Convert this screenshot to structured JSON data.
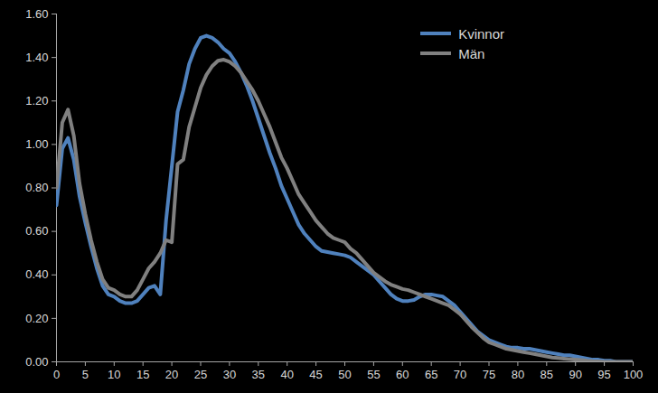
{
  "chart_data": {
    "type": "line",
    "x": [
      0,
      1,
      2,
      3,
      4,
      5,
      6,
      7,
      8,
      9,
      10,
      11,
      12,
      13,
      14,
      15,
      16,
      17,
      18,
      19,
      20,
      21,
      22,
      23,
      24,
      25,
      26,
      27,
      28,
      29,
      30,
      31,
      32,
      33,
      34,
      35,
      36,
      37,
      38,
      39,
      40,
      41,
      42,
      43,
      44,
      45,
      46,
      47,
      48,
      49,
      50,
      51,
      52,
      53,
      54,
      55,
      56,
      57,
      58,
      59,
      60,
      61,
      62,
      63,
      64,
      65,
      66,
      67,
      68,
      69,
      70,
      71,
      72,
      73,
      74,
      75,
      76,
      77,
      78,
      79,
      80,
      81,
      82,
      83,
      84,
      85,
      86,
      87,
      88,
      89,
      90,
      91,
      92,
      93,
      94,
      95,
      96,
      97,
      98,
      99,
      100
    ],
    "series": [
      {
        "name": "Kvinnor",
        "color": "#4f81bd",
        "values": [
          0.72,
          0.98,
          1.03,
          0.93,
          0.76,
          0.64,
          0.53,
          0.43,
          0.35,
          0.31,
          0.3,
          0.28,
          0.27,
          0.27,
          0.28,
          0.31,
          0.34,
          0.35,
          0.31,
          0.65,
          0.9,
          1.15,
          1.25,
          1.37,
          1.44,
          1.49,
          1.5,
          1.49,
          1.47,
          1.44,
          1.42,
          1.38,
          1.33,
          1.27,
          1.2,
          1.12,
          1.04,
          0.96,
          0.89,
          0.81,
          0.75,
          0.69,
          0.63,
          0.59,
          0.56,
          0.53,
          0.51,
          0.505,
          0.5,
          0.495,
          0.49,
          0.48,
          0.46,
          0.44,
          0.42,
          0.4,
          0.37,
          0.34,
          0.31,
          0.29,
          0.28,
          0.28,
          0.285,
          0.3,
          0.31,
          0.31,
          0.305,
          0.3,
          0.28,
          0.26,
          0.23,
          0.2,
          0.17,
          0.14,
          0.12,
          0.1,
          0.09,
          0.08,
          0.07,
          0.065,
          0.065,
          0.06,
          0.06,
          0.055,
          0.05,
          0.045,
          0.04,
          0.035,
          0.03,
          0.03,
          0.025,
          0.02,
          0.015,
          0.01,
          0.01,
          0.005,
          0.005,
          0,
          0,
          0,
          0
        ]
      },
      {
        "name": "Män",
        "color": "#808080",
        "values": [
          0.8,
          1.1,
          1.16,
          1.04,
          0.82,
          0.68,
          0.56,
          0.46,
          0.38,
          0.34,
          0.33,
          0.31,
          0.3,
          0.3,
          0.33,
          0.38,
          0.43,
          0.46,
          0.5,
          0.56,
          0.55,
          0.91,
          0.93,
          1.08,
          1.17,
          1.26,
          1.32,
          1.36,
          1.385,
          1.39,
          1.38,
          1.36,
          1.33,
          1.29,
          1.25,
          1.2,
          1.14,
          1.08,
          1.01,
          0.94,
          0.89,
          0.83,
          0.77,
          0.73,
          0.69,
          0.65,
          0.62,
          0.59,
          0.57,
          0.56,
          0.55,
          0.52,
          0.5,
          0.47,
          0.44,
          0.41,
          0.39,
          0.37,
          0.355,
          0.345,
          0.335,
          0.33,
          0.32,
          0.31,
          0.3,
          0.29,
          0.28,
          0.27,
          0.26,
          0.24,
          0.22,
          0.19,
          0.16,
          0.135,
          0.11,
          0.09,
          0.08,
          0.07,
          0.06,
          0.055,
          0.05,
          0.045,
          0.04,
          0.035,
          0.03,
          0.025,
          0.02,
          0.018,
          0.015,
          0.012,
          0.01,
          0.008,
          0.005,
          0.003,
          0.002,
          0,
          0,
          0,
          0,
          0,
          0
        ]
      }
    ],
    "xlim": [
      0,
      100
    ],
    "xticks": [
      0,
      5,
      10,
      15,
      20,
      25,
      30,
      35,
      40,
      45,
      50,
      55,
      60,
      65,
      70,
      75,
      80,
      85,
      90,
      95,
      100
    ],
    "ylim": [
      0,
      1.6
    ],
    "yticks": [
      {
        "value": 0,
        "label": "0.00"
      },
      {
        "value": 0.2,
        "label": "0.20"
      },
      {
        "value": 0.4,
        "label": "0.40"
      },
      {
        "value": 0.6,
        "label": "0.60"
      },
      {
        "value": 0.8,
        "label": "0.80"
      },
      {
        "value": 1.0,
        "label": "1.00"
      },
      {
        "value": 1.2,
        "label": "1.20"
      },
      {
        "value": 1.4,
        "label": "1.40"
      },
      {
        "value": 1.6,
        "label": "1.60"
      }
    ],
    "grid": false,
    "legend": "top-right"
  }
}
